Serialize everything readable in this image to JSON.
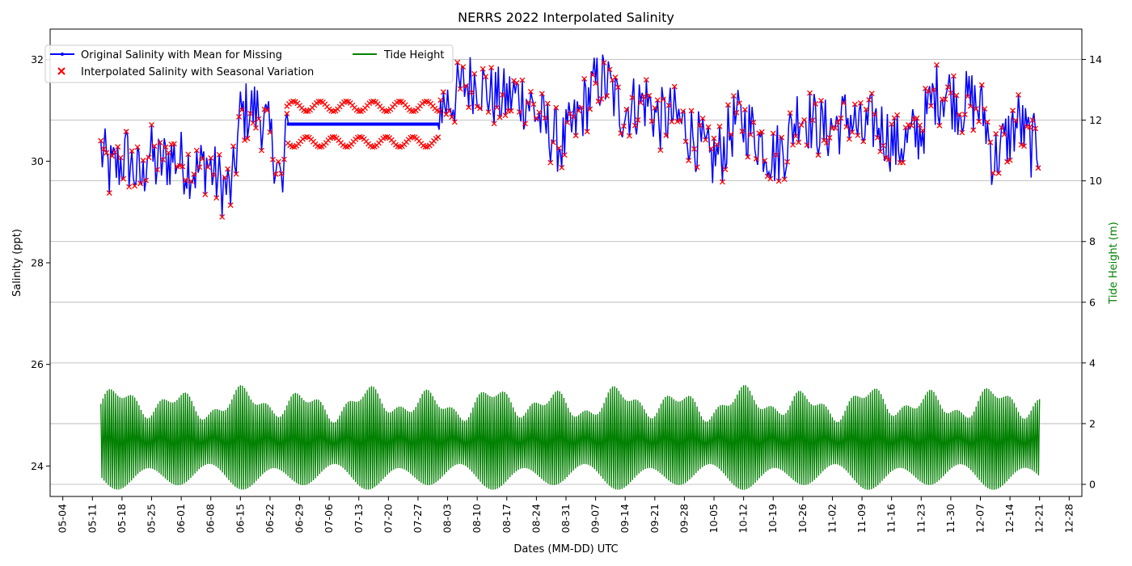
{
  "chart_data": {
    "type": "line",
    "title": "NERRS 2022 Interpolated Salinity",
    "xlabel": "Dates (MM-DD) UTC",
    "ylabel": "Salinity (ppt)",
    "y2label": "Tide Height (m)",
    "xlim": [
      "2022-05-01",
      "2022-12-31"
    ],
    "ylim": [
      23.4,
      32.6
    ],
    "y2lim": [
      -0.4,
      15
    ],
    "xticks": [
      "05-04",
      "05-11",
      "05-18",
      "05-25",
      "06-01",
      "06-08",
      "06-15",
      "06-22",
      "06-29",
      "07-06",
      "07-13",
      "07-20",
      "07-27",
      "08-03",
      "08-10",
      "08-17",
      "08-24",
      "08-31",
      "09-07",
      "09-14",
      "09-21",
      "09-28",
      "10-05",
      "10-12",
      "10-19",
      "10-26",
      "11-02",
      "11-09",
      "11-16",
      "11-23",
      "11-30",
      "12-07",
      "12-14",
      "12-21",
      "12-28"
    ],
    "yticks": [
      24,
      26,
      28,
      30,
      32
    ],
    "y2ticks": [
      0,
      2,
      4,
      6,
      8,
      10,
      12,
      14
    ],
    "grid": "horizontal (right axis)",
    "legend_position": "top-left",
    "colors": {
      "salinity": "#0000ff",
      "interpolated": "#ff0000",
      "tide": "#008000"
    },
    "series": [
      {
        "name": "Original Salinity with Mean for Missing",
        "axis": "left",
        "style": "line-with-dot-markers",
        "x": [
          "2022-05-13",
          "2022-05-15",
          "2022-05-17",
          "2022-05-19",
          "2022-05-21",
          "2022-05-23",
          "2022-05-24",
          "2022-05-26",
          "2022-05-28",
          "2022-05-30",
          "2022-06-01",
          "2022-06-03",
          "2022-06-05",
          "2022-06-07",
          "2022-06-09",
          "2022-06-11",
          "2022-06-13",
          "2022-06-15",
          "2022-06-17",
          "2022-06-19",
          "2022-06-21",
          "2022-06-23",
          "2022-06-25",
          "2022-06-26",
          "2022-08-01",
          "2022-08-04",
          "2022-08-07",
          "2022-08-10",
          "2022-08-13",
          "2022-08-16",
          "2022-08-19",
          "2022-08-22",
          "2022-08-25",
          "2022-08-28",
          "2022-08-30",
          "2022-09-02",
          "2022-09-05",
          "2022-09-07",
          "2022-09-08",
          "2022-09-10",
          "2022-09-13",
          "2022-09-16",
          "2022-09-19",
          "2022-09-22",
          "2022-09-25",
          "2022-09-28",
          "2022-10-01",
          "2022-10-04",
          "2022-10-07",
          "2022-10-10",
          "2022-10-13",
          "2022-10-16",
          "2022-10-19",
          "2022-10-22",
          "2022-10-25",
          "2022-10-28",
          "2022-10-31",
          "2022-11-03",
          "2022-11-06",
          "2022-11-09",
          "2022-11-12",
          "2022-11-14",
          "2022-11-17",
          "2022-11-20",
          "2022-11-23",
          "2022-11-26",
          "2022-11-29",
          "2022-12-02",
          "2022-12-05",
          "2022-12-08",
          "2022-12-10",
          "2022-12-13",
          "2022-12-16",
          "2022-12-19",
          "2022-12-21"
        ],
        "values": [
          30.2,
          29.8,
          29.9,
          30.1,
          29.8,
          29.6,
          30.3,
          29.9,
          30.0,
          30.1,
          30.0,
          29.9,
          29.8,
          30.0,
          29.7,
          29.5,
          29.4,
          30.9,
          31.0,
          31.0,
          30.7,
          30.2,
          29.4,
          30.7,
          31.1,
          31.2,
          31.5,
          31.6,
          31.3,
          31.2,
          31.3,
          31.2,
          30.8,
          30.5,
          30.3,
          30.7,
          31.2,
          31.5,
          31.6,
          31.5,
          31.0,
          31.1,
          31.2,
          30.8,
          30.9,
          30.7,
          30.4,
          30.0,
          30.2,
          30.8,
          30.7,
          30.4,
          30.1,
          30.3,
          31.0,
          30.8,
          30.6,
          30.7,
          30.9,
          30.5,
          30.8,
          30.6,
          30.3,
          30.4,
          30.6,
          31.3,
          31.4,
          31.1,
          31.2,
          30.9,
          30.0,
          30.4,
          30.8,
          30.3,
          30.3
        ]
      },
      {
        "name": "Interpolated Salinity with Seasonal Variation",
        "axis": "left",
        "style": "x-markers",
        "x": [
          "2022-06-26",
          "2022-07-03",
          "2022-07-10",
          "2022-07-17",
          "2022-07-24",
          "2022-07-31"
        ],
        "values": [
          30.7,
          30.7,
          30.7,
          30.7,
          30.7,
          30.7
        ]
      },
      {
        "name": "Tide Height",
        "axis": "right",
        "style": "line",
        "x": [
          "2022-05-13",
          "2022-12-21"
        ],
        "values": [
          1.5,
          1.5
        ]
      }
    ]
  }
}
